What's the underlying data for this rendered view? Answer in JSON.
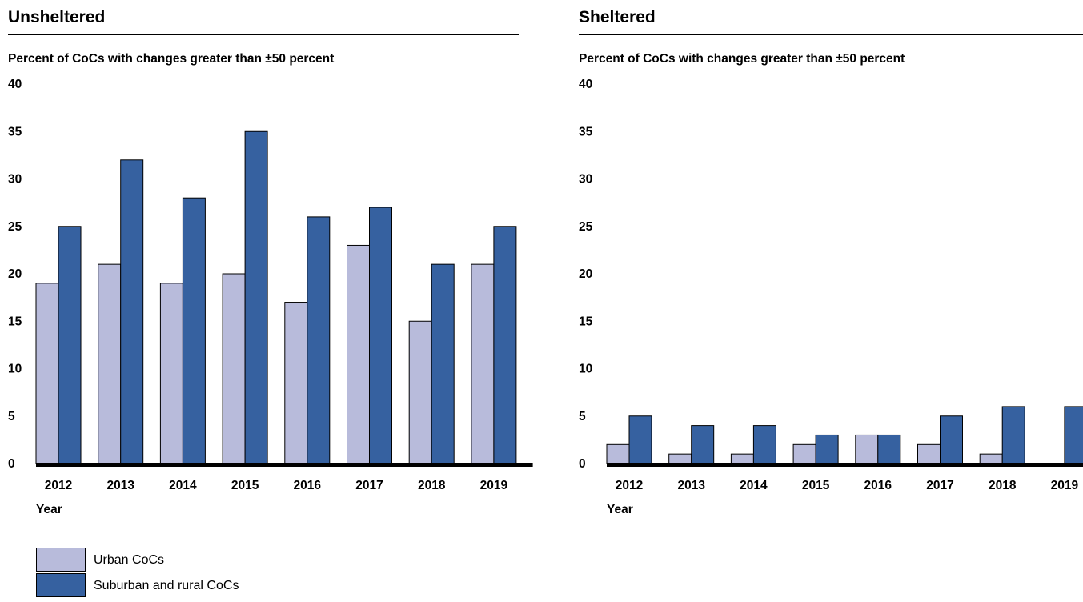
{
  "colors": {
    "urban": "#b8bbdb",
    "suburban": "#3661a0",
    "baseline": "#000000"
  },
  "legend": {
    "items": [
      {
        "label": "Urban CoCs",
        "color": "#b8bbdb"
      },
      {
        "label": "Suburban and rural CoCs",
        "color": "#3661a0"
      }
    ]
  },
  "chart_data": [
    {
      "type": "bar",
      "title": "Unsheltered",
      "ylabel": "Percent of CoCs with changes greater than ±50 percent",
      "xlabel": "Year",
      "categories": [
        "2012",
        "2013",
        "2014",
        "2015",
        "2016",
        "2017",
        "2018",
        "2019"
      ],
      "ylim": [
        0,
        40
      ],
      "yticks": [
        "0",
        "5",
        "10",
        "15",
        "20",
        "25",
        "30",
        "35",
        "40"
      ],
      "grid": false,
      "series": [
        {
          "name": "Urban CoCs",
          "values": [
            19,
            21,
            19,
            20,
            17,
            23,
            15,
            21
          ]
        },
        {
          "name": "Suburban and rural CoCs",
          "values": [
            25,
            32,
            28,
            35,
            26,
            27,
            21,
            25
          ]
        }
      ]
    },
    {
      "type": "bar",
      "title": "Sheltered",
      "ylabel": "Percent of CoCs with changes greater than ±50 percent",
      "xlabel": "Year",
      "categories": [
        "2012",
        "2013",
        "2014",
        "2015",
        "2016",
        "2017",
        "2018",
        "2019"
      ],
      "ylim": [
        0,
        40
      ],
      "yticks": [
        "0",
        "5",
        "10",
        "15",
        "20",
        "25",
        "30",
        "35",
        "40"
      ],
      "grid": false,
      "series": [
        {
          "name": "Urban CoCs",
          "values": [
            2,
            1,
            1,
            2,
            3,
            2,
            1,
            0
          ]
        },
        {
          "name": "Suburban and rural CoCs",
          "values": [
            5,
            4,
            4,
            3,
            3,
            5,
            6,
            6
          ]
        }
      ]
    }
  ]
}
